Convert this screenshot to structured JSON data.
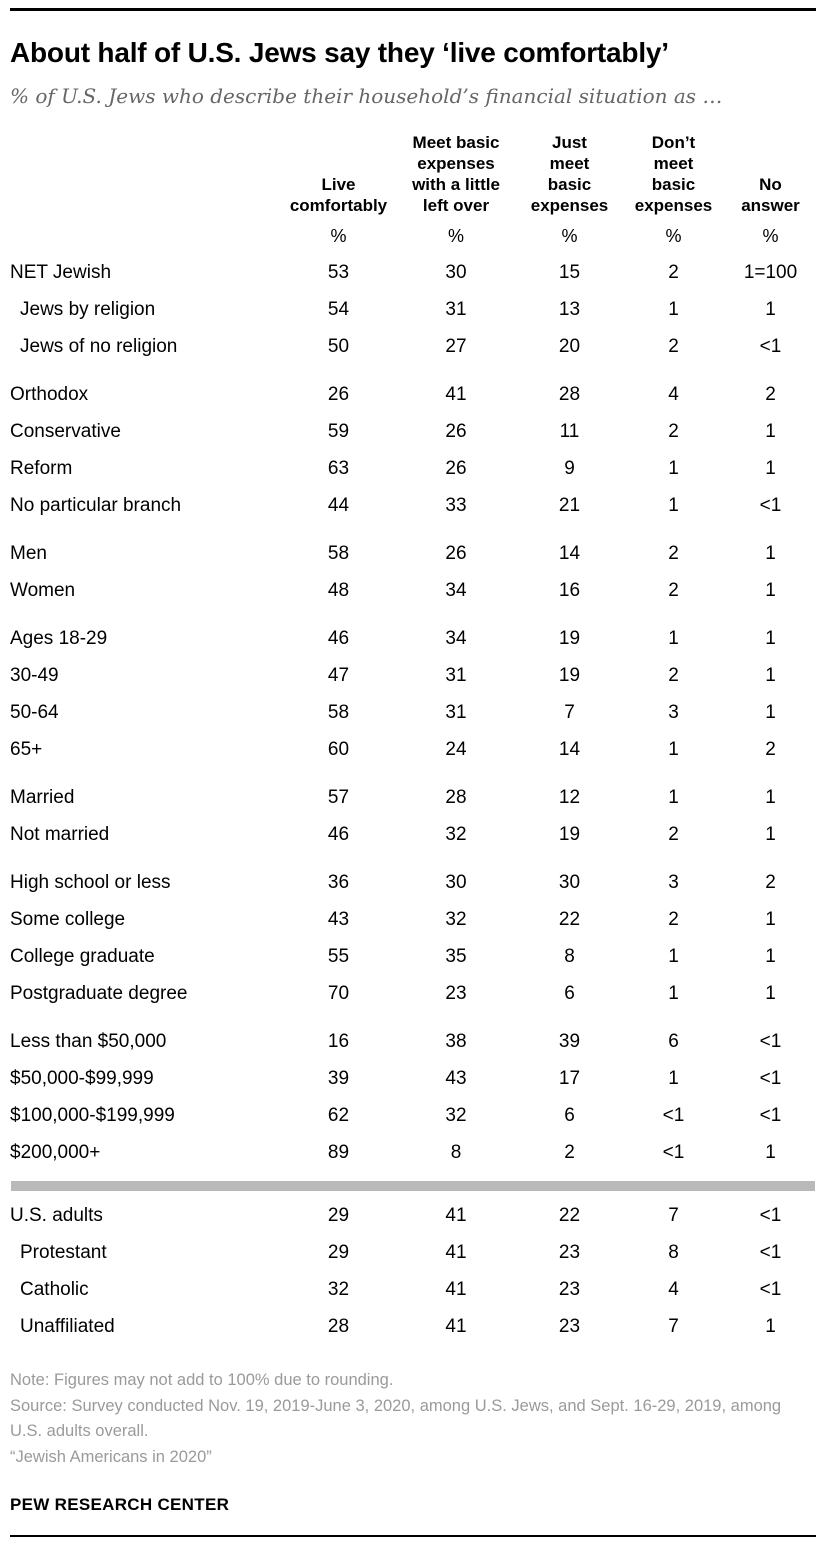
{
  "page": {
    "title": "About half of U.S. Jews say they ‘live comfortably’",
    "subtitle": "% of U.S. Jews who describe their household’s financial situation as …",
    "header_display": [
      "Live\ncomfortably",
      "Meet basic\nexpenses\nwith a little\nleft over",
      "Just\nmeet\nbasic\nexpenses",
      "Don’t\nmeet\nbasic\nexpenses",
      "No\nanswer"
    ],
    "footer": {
      "note": "Note: Figures may not add to 100% due to rounding.",
      "source": "Source: Survey conducted Nov. 19, 2019-June 3, 2020, among U.S. Jews, and Sept. 16-29, 2019, among U.S. adults overall.",
      "citation": "“Jewish Americans in 2020”",
      "brand": "PEW RESEARCH CENTER"
    }
  },
  "chart_data": {
    "type": "table",
    "title": "About half of U.S. Jews say they ‘live comfortably’",
    "subtitle": "% of U.S. Jews who describe their household’s financial situation as …",
    "columns": [
      "Live comfortably",
      "Meet basic expenses with a little left over",
      "Just meet basic expenses",
      "Don’t meet basic expenses",
      "No answer"
    ],
    "unit_row": [
      "%",
      "%",
      "%",
      "%",
      "%"
    ],
    "divider_before_group_index": 7,
    "colors": {
      "divider": "#b9b9b9",
      "title": "#000000",
      "subtitle": "#666666",
      "footnote": "#9a9a9a"
    },
    "groups": [
      {
        "rows": [
          {
            "label": "NET Jewish",
            "indent": false,
            "values": [
              "53",
              "30",
              "15",
              "2",
              "1=100"
            ]
          },
          {
            "label": "Jews by religion",
            "indent": true,
            "values": [
              "54",
              "31",
              "13",
              "1",
              "1"
            ]
          },
          {
            "label": "Jews of no religion",
            "indent": true,
            "values": [
              "50",
              "27",
              "20",
              "2",
              "<1"
            ]
          }
        ]
      },
      {
        "rows": [
          {
            "label": "Orthodox",
            "indent": false,
            "values": [
              "26",
              "41",
              "28",
              "4",
              "2"
            ]
          },
          {
            "label": "Conservative",
            "indent": false,
            "values": [
              "59",
              "26",
              "11",
              "2",
              "1"
            ]
          },
          {
            "label": "Reform",
            "indent": false,
            "values": [
              "63",
              "26",
              "9",
              "1",
              "1"
            ]
          },
          {
            "label": "No particular branch",
            "indent": false,
            "values": [
              "44",
              "33",
              "21",
              "1",
              "<1"
            ]
          }
        ]
      },
      {
        "rows": [
          {
            "label": "Men",
            "indent": false,
            "values": [
              "58",
              "26",
              "14",
              "2",
              "1"
            ]
          },
          {
            "label": "Women",
            "indent": false,
            "values": [
              "48",
              "34",
              "16",
              "2",
              "1"
            ]
          }
        ]
      },
      {
        "rows": [
          {
            "label": "Ages 18-29",
            "indent": false,
            "values": [
              "46",
              "34",
              "19",
              "1",
              "1"
            ]
          },
          {
            "label": "30-49",
            "indent": false,
            "values": [
              "47",
              "31",
              "19",
              "2",
              "1"
            ]
          },
          {
            "label": "50-64",
            "indent": false,
            "values": [
              "58",
              "31",
              "7",
              "3",
              "1"
            ]
          },
          {
            "label": "65+",
            "indent": false,
            "values": [
              "60",
              "24",
              "14",
              "1",
              "2"
            ]
          }
        ]
      },
      {
        "rows": [
          {
            "label": "Married",
            "indent": false,
            "values": [
              "57",
              "28",
              "12",
              "1",
              "1"
            ]
          },
          {
            "label": "Not married",
            "indent": false,
            "values": [
              "46",
              "32",
              "19",
              "2",
              "1"
            ]
          }
        ]
      },
      {
        "rows": [
          {
            "label": "High school or less",
            "indent": false,
            "values": [
              "36",
              "30",
              "30",
              "3",
              "2"
            ]
          },
          {
            "label": "Some college",
            "indent": false,
            "values": [
              "43",
              "32",
              "22",
              "2",
              "1"
            ]
          },
          {
            "label": "College graduate",
            "indent": false,
            "values": [
              "55",
              "35",
              "8",
              "1",
              "1"
            ]
          },
          {
            "label": "Postgraduate degree",
            "indent": false,
            "values": [
              "70",
              "23",
              "6",
              "1",
              "1"
            ]
          }
        ]
      },
      {
        "rows": [
          {
            "label": "Less than $50,000",
            "indent": false,
            "values": [
              "16",
              "38",
              "39",
              "6",
              "<1"
            ]
          },
          {
            "label": "$50,000-$99,999",
            "indent": false,
            "values": [
              "39",
              "43",
              "17",
              "1",
              "<1"
            ]
          },
          {
            "label": "$100,000-$199,999",
            "indent": false,
            "values": [
              "62",
              "32",
              "6",
              "<1",
              "<1"
            ]
          },
          {
            "label": "$200,000+",
            "indent": false,
            "values": [
              "89",
              "8",
              "2",
              "<1",
              "1"
            ]
          }
        ]
      },
      {
        "rows": [
          {
            "label": "U.S. adults",
            "indent": false,
            "values": [
              "29",
              "41",
              "22",
              "7",
              "<1"
            ]
          },
          {
            "label": "Protestant",
            "indent": true,
            "values": [
              "29",
              "41",
              "23",
              "8",
              "<1"
            ]
          },
          {
            "label": "Catholic",
            "indent": true,
            "values": [
              "32",
              "41",
              "23",
              "4",
              "<1"
            ]
          },
          {
            "label": "Unaffiliated",
            "indent": true,
            "values": [
              "28",
              "41",
              "23",
              "7",
              "1"
            ]
          }
        ]
      }
    ]
  }
}
